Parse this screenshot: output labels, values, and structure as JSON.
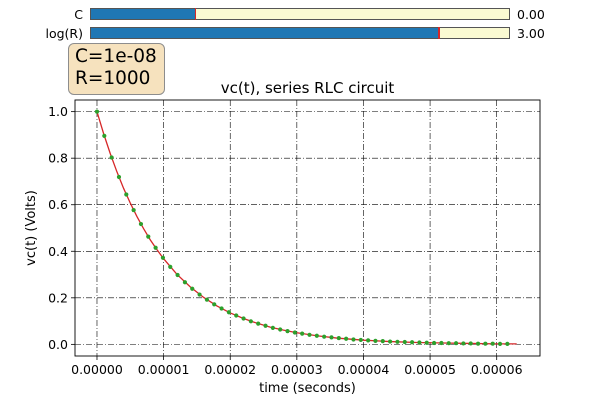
{
  "sliders": [
    {
      "name": "c",
      "label": "C",
      "value_text": "0.00",
      "fraction": 0.25
    },
    {
      "name": "log-r",
      "label": "log(R)",
      "value_text": "3.00",
      "fraction": 0.833
    }
  ],
  "info": {
    "line1": "C=1e-08",
    "line2": "R=1000"
  },
  "colors": {
    "slider_fill": "#1f77b4",
    "slider_bg": "#fafad2",
    "handle": "#d62728",
    "line": "#d62728",
    "markers": "#2ca02c",
    "box": "#f5deb3"
  },
  "chart_data": {
    "type": "line",
    "title": "vc(t), series RLC circuit",
    "xlabel": "time (seconds)",
    "ylabel": "vc(t) (Volts)",
    "xlim": [
      -3.3e-06,
      6.65e-05
    ],
    "ylim": [
      -0.05,
      1.05
    ],
    "x_ticks": [
      0,
      1e-05,
      2e-05,
      3e-05,
      4e-05,
      5e-05,
      6e-05
    ],
    "x_tick_labels": [
      "0.00000",
      "0.00001",
      "0.00002",
      "0.00003",
      "0.00004",
      "0.00005",
      "0.00006"
    ],
    "y_ticks": [
      0.0,
      0.2,
      0.4,
      0.6,
      0.8,
      1.0
    ],
    "y_tick_labels": [
      "0.0",
      "0.2",
      "0.4",
      "0.6",
      "0.8",
      "1.0"
    ],
    "grid": true,
    "series": [
      {
        "style": "line",
        "x": [
          0,
          1e-06,
          2e-06,
          3e-06,
          4e-06,
          5e-06,
          6e-06,
          7e-06,
          8e-06,
          9e-06,
          1e-05,
          1.2e-05,
          1.4e-05,
          1.6e-05,
          1.8e-05,
          2e-05,
          2.2e-05,
          2.4e-05,
          2.6e-05,
          2.8e-05,
          3e-05,
          3.3e-05,
          3.6e-05,
          4e-05,
          4.4e-05,
          4.8e-05,
          5.2e-05,
          5.6e-05,
          6e-05,
          6.3e-05
        ],
        "y": [
          1.0,
          0.905,
          0.819,
          0.741,
          0.67,
          0.607,
          0.549,
          0.497,
          0.449,
          0.407,
          0.368,
          0.301,
          0.247,
          0.202,
          0.165,
          0.135,
          0.111,
          0.091,
          0.074,
          0.061,
          0.05,
          0.037,
          0.027,
          0.018,
          0.012,
          0.008,
          0.006,
          0.004,
          0.002,
          0.002
        ]
      },
      {
        "style": "markers",
        "x": [
          0,
          1.1e-06,
          2.2e-06,
          3.3e-06,
          4.4e-06,
          5.5e-06,
          6.6e-06,
          7.7e-06,
          8.8e-06,
          9.9e-06,
          1.1e-05,
          1.21e-05,
          1.32e-05,
          1.43e-05,
          1.54e-05,
          1.65e-05,
          1.76e-05,
          1.87e-05,
          1.98e-05,
          2.09e-05,
          2.2e-05,
          2.31e-05,
          2.42e-05,
          2.53e-05,
          2.64e-05,
          2.75e-05,
          2.86e-05,
          2.97e-05,
          3.08e-05,
          3.19e-05,
          3.3e-05,
          3.41e-05,
          3.52e-05,
          3.63e-05,
          3.74e-05,
          3.85e-05,
          3.96e-05,
          4.07e-05,
          4.18e-05,
          4.29e-05,
          4.4e-05,
          4.51e-05,
          4.62e-05,
          4.73e-05,
          4.84e-05,
          4.95e-05,
          5.06e-05,
          5.17e-05,
          5.28e-05,
          5.39e-05,
          5.5e-05,
          5.61e-05,
          5.72e-05,
          5.83e-05,
          5.94e-05,
          6.05e-05,
          6.16e-05
        ],
        "y": [
          1.0,
          0.896,
          0.803,
          0.719,
          0.644,
          0.577,
          0.517,
          0.463,
          0.415,
          0.372,
          0.333,
          0.298,
          0.267,
          0.239,
          0.214,
          0.192,
          0.172,
          0.154,
          0.138,
          0.124,
          0.111,
          0.099,
          0.089,
          0.08,
          0.071,
          0.064,
          0.057,
          0.051,
          0.046,
          0.041,
          0.037,
          0.033,
          0.03,
          0.027,
          0.024,
          0.021,
          0.019,
          0.017,
          0.015,
          0.014,
          0.012,
          0.011,
          0.01,
          0.009,
          0.008,
          0.007,
          0.006,
          0.006,
          0.005,
          0.005,
          0.004,
          0.004,
          0.003,
          0.003,
          0.003,
          0.002,
          0.002
        ]
      }
    ]
  }
}
